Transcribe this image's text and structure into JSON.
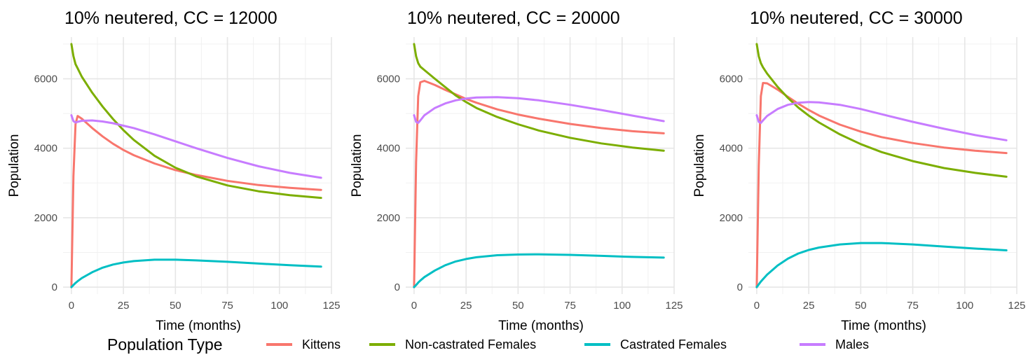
{
  "legend": {
    "title": "Population Type",
    "colors": {
      "Kittens": "#F8766D",
      "Non-castrated Females": "#7CAE00",
      "Castrated Females": "#00BFC4",
      "Males": "#C77CFF"
    }
  },
  "chart_data": [
    {
      "type": "line",
      "title": "10% neutered, CC = 12000",
      "xlabel": "Time (months)",
      "ylabel": "Population",
      "xlim": [
        -4,
        125
      ],
      "ylim": [
        -200,
        7200
      ],
      "xticks": [
        0,
        25,
        50,
        75,
        100,
        125
      ],
      "yticks": [
        0,
        2000,
        4000,
        6000
      ],
      "grid": true,
      "legend_position": "bottom",
      "x": [
        0,
        1,
        2,
        3,
        5,
        10,
        15,
        20,
        25,
        30,
        40,
        50,
        60,
        75,
        90,
        105,
        120
      ],
      "series": [
        {
          "name": "Kittens",
          "values": [
            0,
            3200,
            4700,
            4930,
            4850,
            4580,
            4340,
            4130,
            3950,
            3800,
            3560,
            3370,
            3230,
            3060,
            2940,
            2860,
            2800
          ]
        },
        {
          "name": "Non-castrated Females",
          "values": [
            7000,
            6650,
            6420,
            6300,
            6060,
            5600,
            5200,
            4840,
            4520,
            4240,
            3780,
            3440,
            3190,
            2930,
            2760,
            2650,
            2570
          ]
        },
        {
          "name": "Castrated Females",
          "values": [
            0,
            60,
            120,
            170,
            260,
            430,
            560,
            650,
            710,
            750,
            790,
            790,
            770,
            730,
            680,
            630,
            590
          ]
        },
        {
          "name": "Males",
          "values": [
            4950,
            4780,
            4740,
            4760,
            4790,
            4800,
            4770,
            4720,
            4650,
            4580,
            4400,
            4200,
            4000,
            3720,
            3480,
            3290,
            3150
          ]
        }
      ]
    },
    {
      "type": "line",
      "title": "10% neutered, CC = 20000",
      "xlabel": "Time (months)",
      "ylabel": "Population",
      "xlim": [
        -4,
        125
      ],
      "ylim": [
        -200,
        7200
      ],
      "xticks": [
        0,
        25,
        50,
        75,
        100,
        125
      ],
      "yticks": [
        0,
        2000,
        4000,
        6000
      ],
      "grid": true,
      "legend_position": "bottom",
      "x": [
        0,
        1,
        2,
        3,
        5,
        10,
        15,
        20,
        25,
        30,
        40,
        50,
        60,
        75,
        90,
        105,
        120
      ],
      "series": [
        {
          "name": "Kittens",
          "values": [
            0,
            3600,
            5500,
            5900,
            5940,
            5820,
            5680,
            5550,
            5420,
            5310,
            5120,
            4970,
            4850,
            4700,
            4580,
            4490,
            4430
          ]
        },
        {
          "name": "Non-castrated Females",
          "values": [
            7000,
            6650,
            6450,
            6350,
            6250,
            6000,
            5760,
            5520,
            5330,
            5160,
            4900,
            4690,
            4510,
            4300,
            4140,
            4020,
            3930
          ]
        },
        {
          "name": "Castrated Females",
          "values": [
            0,
            60,
            130,
            190,
            290,
            480,
            630,
            740,
            810,
            860,
            920,
            940,
            945,
            930,
            900,
            870,
            850
          ]
        },
        {
          "name": "Males",
          "values": [
            4950,
            4760,
            4730,
            4800,
            4950,
            5160,
            5290,
            5380,
            5430,
            5460,
            5470,
            5440,
            5380,
            5250,
            5100,
            4940,
            4780
          ]
        }
      ]
    },
    {
      "type": "line",
      "title": "10% neutered, CC = 30000",
      "xlabel": "Time (months)",
      "ylabel": "Population",
      "xlim": [
        -4,
        125
      ],
      "ylim": [
        -200,
        7200
      ],
      "xticks": [
        0,
        25,
        50,
        75,
        100,
        125
      ],
      "yticks": [
        0,
        2000,
        4000,
        6000
      ],
      "grid": true,
      "legend_position": "bottom",
      "x": [
        0,
        1,
        2,
        3,
        5,
        10,
        15,
        20,
        25,
        30,
        40,
        50,
        60,
        75,
        90,
        105,
        120
      ],
      "series": [
        {
          "name": "Kittens",
          "values": [
            0,
            3500,
            5500,
            5880,
            5870,
            5690,
            5480,
            5280,
            5100,
            4940,
            4680,
            4480,
            4320,
            4150,
            4020,
            3930,
            3860
          ]
        },
        {
          "name": "Non-castrated Females",
          "values": [
            7000,
            6650,
            6450,
            6330,
            6150,
            5770,
            5450,
            5170,
            4940,
            4740,
            4400,
            4120,
            3890,
            3630,
            3430,
            3290,
            3180
          ]
        },
        {
          "name": "Castrated Females",
          "values": [
            0,
            80,
            160,
            230,
            360,
            620,
            820,
            970,
            1070,
            1140,
            1230,
            1270,
            1270,
            1230,
            1170,
            1110,
            1060
          ]
        },
        {
          "name": "Males",
          "values": [
            4950,
            4760,
            4730,
            4800,
            4930,
            5130,
            5250,
            5310,
            5330,
            5320,
            5250,
            5130,
            4980,
            4760,
            4560,
            4380,
            4230
          ]
        }
      ]
    }
  ]
}
